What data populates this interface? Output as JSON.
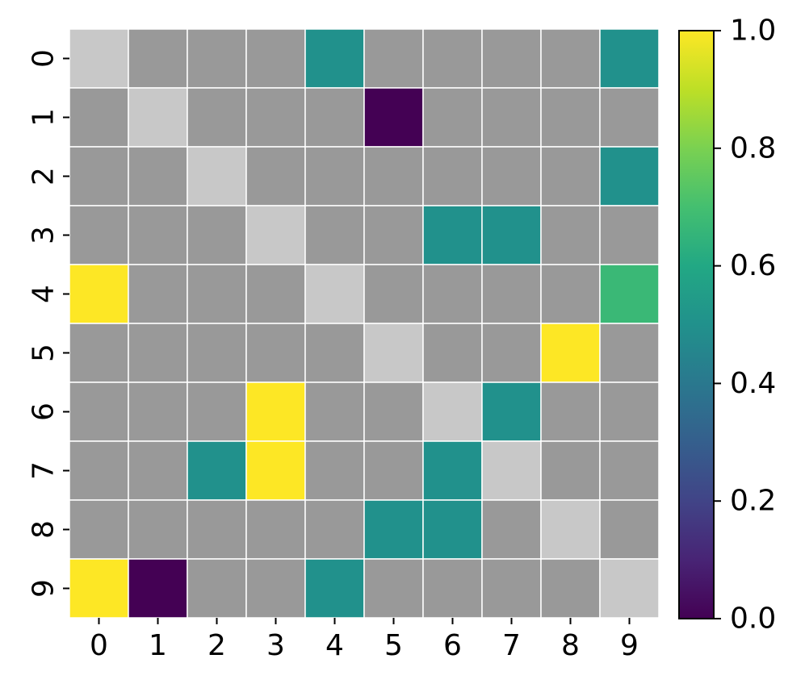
{
  "chart_data": {
    "type": "heatmap",
    "title": "",
    "xlabel": "",
    "ylabel": "",
    "x_categories": [
      "0",
      "1",
      "2",
      "3",
      "4",
      "5",
      "6",
      "7",
      "8",
      "9"
    ],
    "y_categories": [
      "0",
      "1",
      "2",
      "3",
      "4",
      "5",
      "6",
      "7",
      "8",
      "9"
    ],
    "colormap": "viridis",
    "vmin": 0.0,
    "vmax": 1.0,
    "colorbar_ticks": [
      "0.0",
      "0.2",
      "0.4",
      "0.6",
      "0.8",
      "1.0"
    ],
    "colorbar_tick_values": [
      0.0,
      0.2,
      0.4,
      0.6,
      0.8,
      1.0
    ],
    "masked_color": "#999999",
    "diagonal_color": "#c8c8c8",
    "grid_line_color": "#ffffff",
    "note_values": "null = masked cell (grey); -1 = diagonal cell (light grey)",
    "values": [
      [
        -1,
        null,
        null,
        null,
        0.5,
        null,
        null,
        null,
        null,
        0.5
      ],
      [
        null,
        -1,
        null,
        null,
        null,
        0.0,
        null,
        null,
        null,
        null
      ],
      [
        null,
        null,
        -1,
        null,
        null,
        null,
        null,
        null,
        null,
        0.5
      ],
      [
        null,
        null,
        null,
        -1,
        null,
        null,
        0.5,
        0.5,
        null,
        null
      ],
      [
        1.0,
        null,
        null,
        null,
        -1,
        null,
        null,
        null,
        null,
        0.67
      ],
      [
        null,
        null,
        null,
        null,
        null,
        -1,
        null,
        null,
        1.0,
        null
      ],
      [
        null,
        null,
        null,
        1.0,
        null,
        null,
        -1,
        0.5,
        null,
        null
      ],
      [
        null,
        null,
        0.5,
        1.0,
        null,
        null,
        0.5,
        -1,
        null,
        null
      ],
      [
        null,
        null,
        null,
        null,
        null,
        0.5,
        0.5,
        null,
        -1,
        null
      ],
      [
        1.0,
        0.0,
        null,
        null,
        0.5,
        null,
        null,
        null,
        null,
        -1
      ]
    ]
  }
}
